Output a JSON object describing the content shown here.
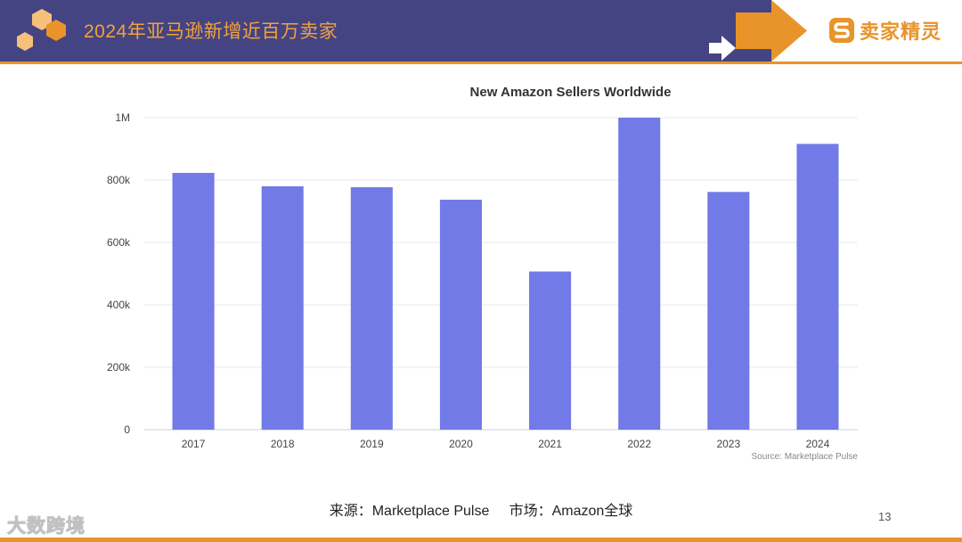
{
  "header": {
    "title": "2024年亚马逊新增近百万卖家",
    "brand_name": "卖家精灵",
    "accent_color": "#e8942a",
    "bar_color": "#454482"
  },
  "chart_data": {
    "type": "bar",
    "title": "New Amazon Sellers Worldwide",
    "categories": [
      "2017",
      "2018",
      "2019",
      "2020",
      "2021",
      "2022",
      "2023",
      "2024"
    ],
    "values": [
      823000,
      780000,
      777000,
      737000,
      507000,
      1000000,
      762000,
      916000
    ],
    "ytick_labels": [
      "0",
      "200k",
      "400k",
      "600k",
      "800k",
      "1M"
    ],
    "ytick_values": [
      0,
      200000,
      400000,
      600000,
      800000,
      1000000
    ],
    "ylim": [
      0,
      1000000
    ],
    "source_note": "Source: Marketplace Pulse",
    "bar_color": "#717ae6",
    "grid": true
  },
  "footer": {
    "source": "来源：Marketplace Pulse     市场：Amazon全球",
    "page_number": "13",
    "watermark": "大数跨境"
  }
}
